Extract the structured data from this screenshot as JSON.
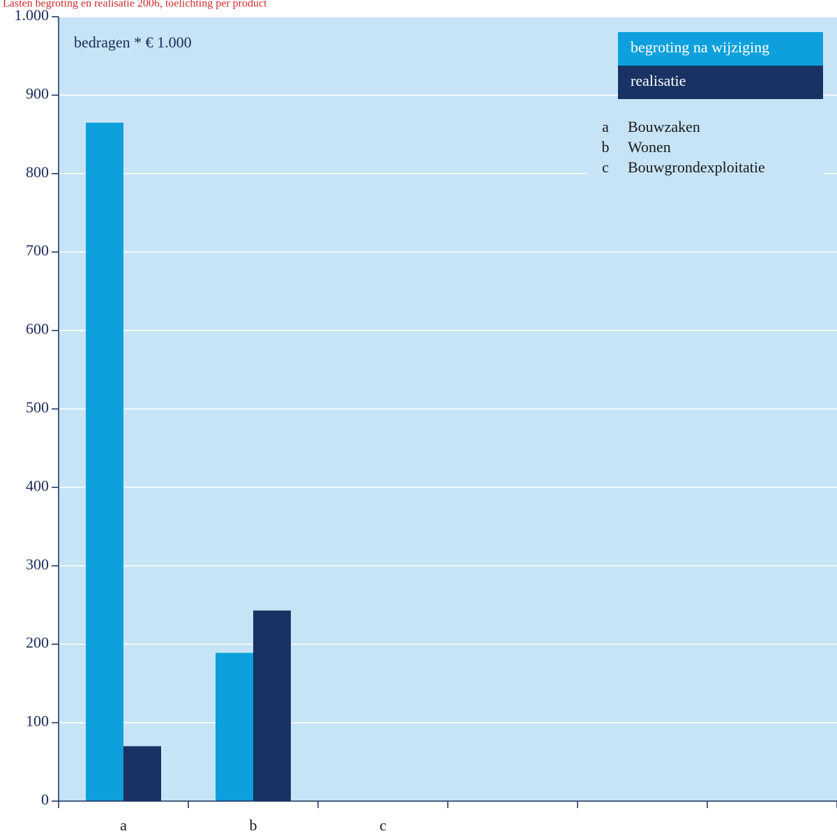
{
  "header_note": "Lasten begroting en realisatie 2006, toelichting per product",
  "chart_data": {
    "type": "bar",
    "unit_note": "bedragen * € 1.000",
    "categories": [
      "a",
      "b",
      "c"
    ],
    "series": [
      {
        "name": "begroting na wijziging",
        "values": [
          865,
          189,
          0
        ],
        "color": "#0ea0dc"
      },
      {
        "name": "realisatie",
        "values": [
          70,
          243,
          0
        ],
        "color": "#1a3263"
      }
    ],
    "ylim": [
      0,
      1000
    ],
    "y_ticks": [
      0,
      100,
      200,
      300,
      400,
      500,
      600,
      700,
      800,
      900,
      1000
    ],
    "y_tick_labels": [
      "0",
      "100",
      "200",
      "300",
      "400",
      "500",
      "600",
      "700",
      "800",
      "900",
      "1.000"
    ],
    "x_slots": 6,
    "key": [
      {
        "letter": "a",
        "label": "Bouwzaken"
      },
      {
        "letter": "b",
        "label": "Wonen"
      },
      {
        "letter": "c",
        "label": "Bouwgrondexploitatie"
      }
    ],
    "plot_background": "#c6e4f5",
    "grid": true,
    "legend_position": "top-right"
  }
}
